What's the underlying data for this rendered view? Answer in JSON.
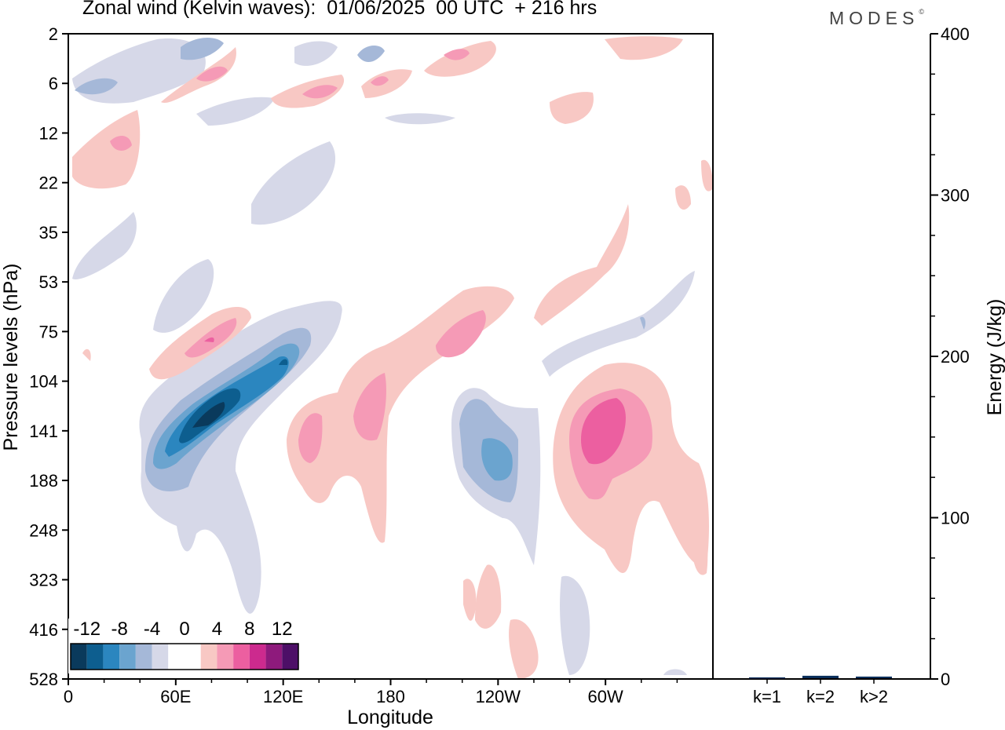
{
  "header": {
    "title": "Zonal wind (Kelvin waves):  01/06/2025  00 UTC  + 216 hrs",
    "brand": "MODES"
  },
  "chart_data": [
    {
      "type": "heatmap",
      "variable": "Zonal wind (Kelvin waves)",
      "xlabel": "Longitude",
      "ylabel": "Pressure levels (hPa)",
      "x_ticks": [
        "0",
        "60E",
        "120E",
        "180",
        "120W",
        "60W"
      ],
      "y_ticks": [
        "2",
        "6",
        "12",
        "22",
        "35",
        "53",
        "75",
        "104",
        "141",
        "188",
        "248",
        "323",
        "416",
        "528"
      ],
      "colorbar": {
        "labels": [
          "-12",
          "-8",
          "-4",
          "0",
          "4",
          "8",
          "12"
        ],
        "colors": [
          "#0a3a5c",
          "#0d5e8f",
          "#2b86bf",
          "#6ba4cf",
          "#a5b8d8",
          "#d6d8e8",
          "#ffffff",
          "#ffffff",
          "#f8c8c4",
          "#f59ab6",
          "#ec5fa0",
          "#cc2a8e",
          "#8e1a7c",
          "#4d0f67"
        ]
      },
      "features": [
        {
          "sign": "negative",
          "max_level": "-12",
          "lon": "60E-120E",
          "pressure": "104-188"
        },
        {
          "sign": "negative",
          "max_level": "-8",
          "lon": "120W",
          "pressure": "104-188"
        },
        {
          "sign": "positive",
          "max_level": "8",
          "lon": "60W",
          "pressure": "104-188"
        },
        {
          "sign": "positive",
          "max_level": "4",
          "lon": "150E-180",
          "pressure": "104-248"
        },
        {
          "sign": "positive",
          "max_level": "4",
          "lon": "160W-120W",
          "pressure": "53-104"
        }
      ]
    },
    {
      "type": "bar",
      "ylabel": "Energy (J/kg)",
      "categories": [
        "k=1",
        "k=2",
        "k>2"
      ],
      "values": [
        0.5,
        1.5,
        1.0
      ],
      "ylim": [
        0,
        400
      ],
      "y_ticks": [
        "0",
        "100",
        "200",
        "300",
        "400"
      ]
    }
  ]
}
